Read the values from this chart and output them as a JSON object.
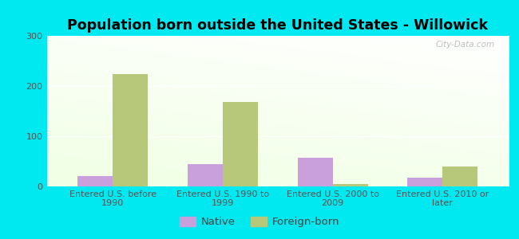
{
  "title": "Population born outside the United States - Willowick",
  "categories": [
    "Entered U.S. before\n1990",
    "Entered U.S. 1990 to\n1999",
    "Entered U.S. 2000 to\n2009",
    "Entered U.S. 2010 or\nlater"
  ],
  "native_values": [
    20,
    45,
    57,
    18
  ],
  "foreign_values": [
    224,
    168,
    5,
    40
  ],
  "native_color": "#c9a0dc",
  "foreign_color": "#b8c87a",
  "outer_bg": "#00e8f0",
  "ylim": [
    0,
    300
  ],
  "yticks": [
    0,
    100,
    200,
    300
  ],
  "bar_width": 0.32,
  "legend_labels": [
    "Native",
    "Foreign-born"
  ],
  "watermark": "City-Data.com",
  "title_fontsize": 12.5,
  "tick_fontsize": 8,
  "legend_fontsize": 9.5
}
